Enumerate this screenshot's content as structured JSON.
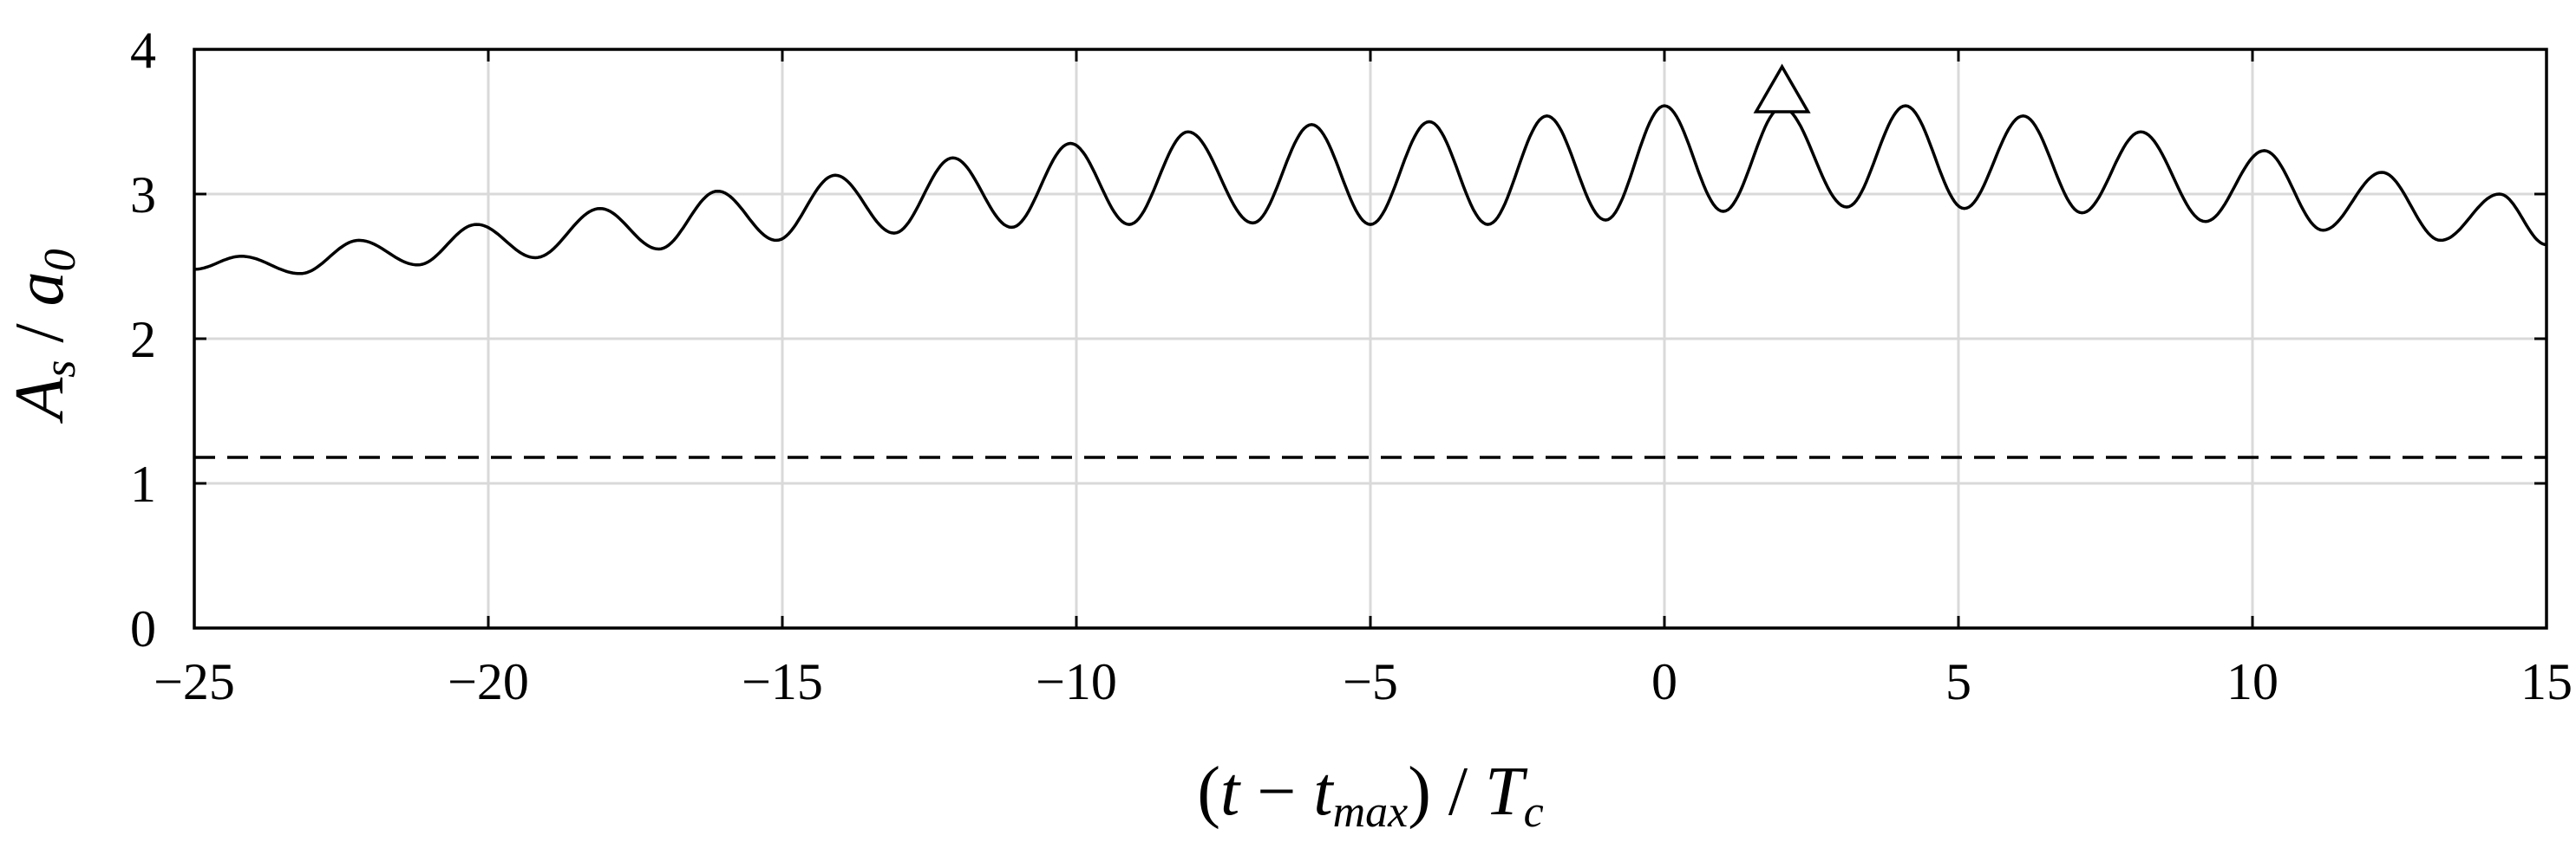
{
  "chart_data": {
    "type": "line",
    "title": "",
    "xlabel": {
      "open_paren": "(",
      "t": "t",
      "minus": " − ",
      "tmax_base": "t",
      "tmax_sub": "max",
      "close_paren": ")",
      "slash": " / ",
      "Tc_base": "T",
      "Tc_sub": "c"
    },
    "ylabel": {
      "As_base": "A",
      "As_sub": "s",
      "slash": " / ",
      "a0_base": "a",
      "a0_sub": "0"
    },
    "xlim": [
      -25,
      15
    ],
    "ylim": [
      0,
      4
    ],
    "xticks": [
      -25,
      -20,
      -15,
      -10,
      -5,
      0,
      5,
      10,
      15
    ],
    "xtick_labels": [
      "−25",
      "−20",
      "−15",
      "−10",
      "−5",
      "0",
      "5",
      "10",
      "15"
    ],
    "yticks": [
      0,
      1,
      2,
      3,
      4
    ],
    "ytick_labels": [
      "0",
      "1",
      "2",
      "3",
      "4"
    ],
    "grid": true,
    "series": [
      {
        "style": "solid",
        "color": "#000000",
        "period": 2.0,
        "peaks": [
          [
            -24.2,
            2.57
          ],
          [
            -22.2,
            2.68
          ],
          [
            -20.2,
            2.79
          ],
          [
            -18.1,
            2.9
          ],
          [
            -16.1,
            3.02
          ],
          [
            -14.1,
            3.13
          ],
          [
            -12.1,
            3.25
          ],
          [
            -10.1,
            3.35
          ],
          [
            -8.1,
            3.43
          ],
          [
            -6.0,
            3.48
          ],
          [
            -4.0,
            3.5
          ],
          [
            -2.0,
            3.54
          ],
          [
            0.0,
            3.61
          ],
          [
            2.0,
            3.6
          ],
          [
            4.1,
            3.61
          ],
          [
            6.1,
            3.54
          ],
          [
            8.1,
            3.43
          ],
          [
            10.2,
            3.3
          ],
          [
            12.2,
            3.15
          ],
          [
            14.2,
            3.0
          ]
        ],
        "troughs": [
          [
            -23.2,
            2.45
          ],
          [
            -21.2,
            2.51
          ],
          [
            -19.2,
            2.56
          ],
          [
            -17.1,
            2.62
          ],
          [
            -15.1,
            2.68
          ],
          [
            -13.1,
            2.73
          ],
          [
            -11.1,
            2.77
          ],
          [
            -9.1,
            2.79
          ],
          [
            -7.0,
            2.8
          ],
          [
            -5.0,
            2.79
          ],
          [
            -3.0,
            2.79
          ],
          [
            -1.0,
            2.82
          ],
          [
            1.0,
            2.88
          ],
          [
            3.1,
            2.91
          ],
          [
            5.1,
            2.9
          ],
          [
            7.1,
            2.87
          ],
          [
            9.2,
            2.81
          ],
          [
            11.2,
            2.75
          ],
          [
            13.2,
            2.68
          ]
        ],
        "start": [
          -25.0,
          2.48
        ],
        "end": [
          15.0,
          2.65
        ]
      },
      {
        "style": "dashed",
        "color": "#000000",
        "y": 1.18
      }
    ],
    "markers": [
      {
        "shape": "triangle-up",
        "x": 2.0,
        "y": 3.6
      }
    ]
  }
}
